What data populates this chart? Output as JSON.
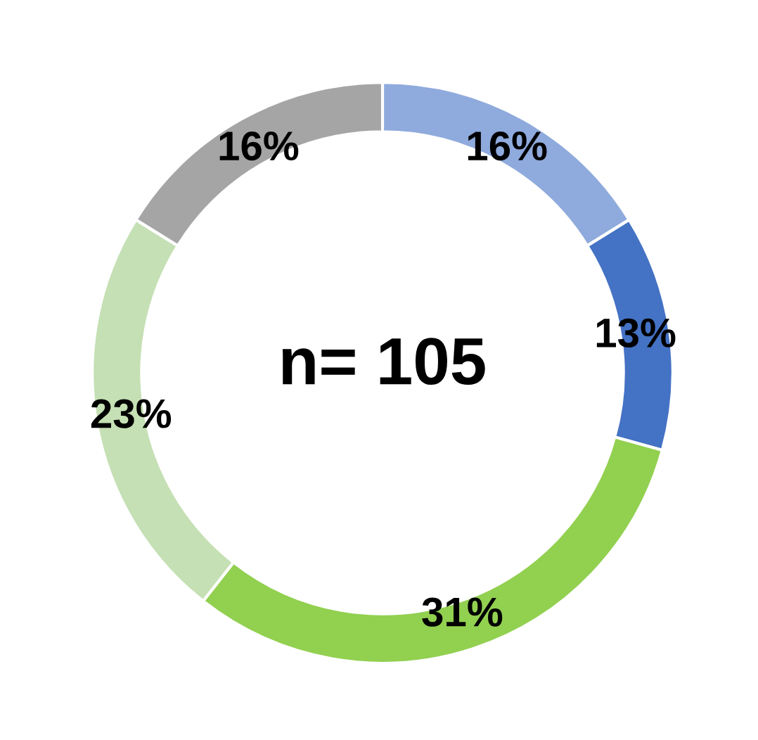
{
  "chart_data": {
    "type": "donut",
    "categories": [
      null,
      null,
      null,
      null,
      null
    ],
    "values": [
      16,
      13,
      31,
      23,
      16
    ],
    "colors": [
      "#8faadc",
      "#4472c4",
      "#92d050",
      "#c5e0b4",
      "#a5a5a5"
    ],
    "value_labels": [
      "16%",
      "13%",
      "31%",
      "23%",
      "16%"
    ],
    "annotations": [
      "n= 105"
    ]
  }
}
